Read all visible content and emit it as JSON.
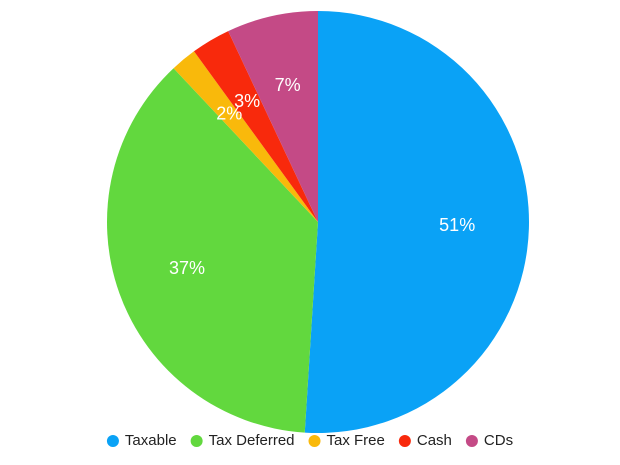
{
  "chart_data": {
    "type": "pie",
    "categories": [
      "Taxable",
      "Tax Deferred",
      "Tax Free",
      "Cash",
      "CDs"
    ],
    "values": [
      51,
      37,
      2,
      3,
      7
    ],
    "value_labels": [
      "51%",
      "37%",
      "2%",
      "3%",
      "7%"
    ],
    "colors": [
      "#0aa2f6",
      "#62d83e",
      "#f9b90b",
      "#f8290c",
      "#c44a86"
    ],
    "legend": "bottom"
  }
}
